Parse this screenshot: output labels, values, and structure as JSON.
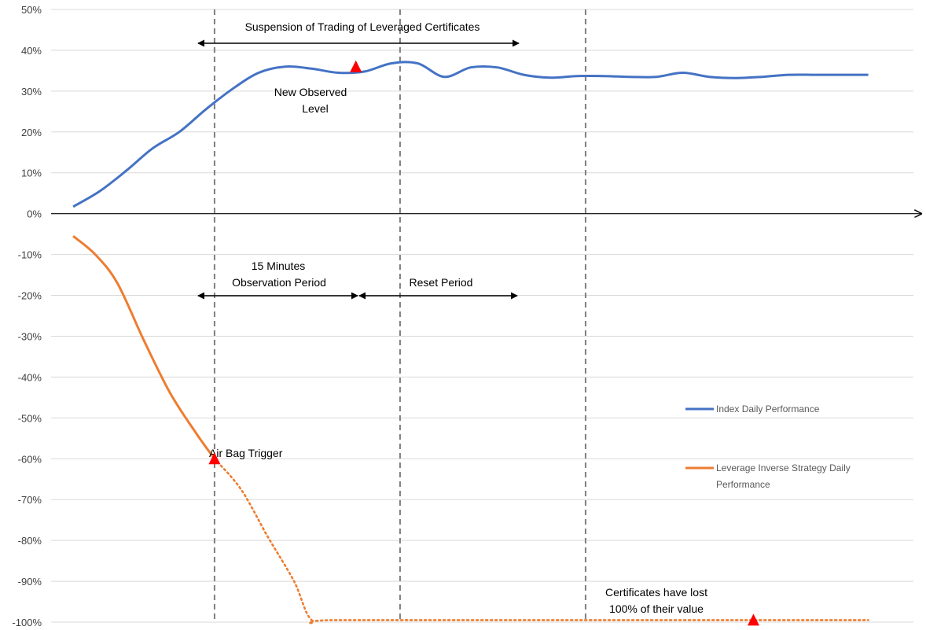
{
  "chart_data": {
    "type": "line",
    "title": "",
    "xlabel": "",
    "ylabel": "",
    "ylim": [
      -100,
      50
    ],
    "yticks": [
      "50%",
      "40%",
      "30%",
      "20%",
      "10%",
      "0%",
      "-10%",
      "-20%",
      "-30%",
      "-40%",
      "-50%",
      "-60%",
      "-70%",
      "-80%",
      "-90%",
      "-100%"
    ],
    "grid": true,
    "legend_position": "right",
    "series": [
      {
        "name": "Index Daily Performance",
        "color": "#4472C4",
        "style": "solid",
        "x": [
          0,
          3,
          6,
          9,
          12,
          15,
          18,
          21,
          24,
          27,
          30,
          33,
          36,
          39,
          42,
          45,
          48,
          51,
          54,
          57,
          60,
          63,
          66,
          69,
          72,
          75,
          78,
          81,
          84,
          87,
          90
        ],
        "values": [
          1.7,
          5.5,
          10.5,
          16,
          20,
          25.5,
          30.5,
          34.5,
          36,
          35.5,
          34.5,
          34.8,
          36.8,
          36.8,
          33.5,
          35.8,
          35.8,
          34,
          33.3,
          33.7,
          33.7,
          33.5,
          33.5,
          34.5,
          33.5,
          33.2,
          33.5,
          34,
          34,
          34,
          34
        ]
      },
      {
        "name": "Leverage Inverse Strategy Daily Performance",
        "color": "#ED7D31",
        "style": "solid",
        "x": [
          0,
          2.5,
          5,
          8,
          11,
          14,
          16
        ],
        "values": [
          -5.5,
          -10,
          -17,
          -31,
          -44,
          -54,
          -60
        ]
      },
      {
        "name": "",
        "color": "#ED7D31",
        "style": "dotted",
        "x": [
          16,
          19,
          22,
          25,
          27,
          30,
          60,
          90
        ],
        "values": [
          -60,
          -67.5,
          -79,
          -90,
          -99.5,
          -99.5,
          -99.5,
          -99.5
        ]
      }
    ],
    "vlines_x": [
      16,
      37,
      58
    ],
    "markers": [
      {
        "x": 32,
        "y": 36,
        "color": "#FF0000"
      },
      {
        "x": 16,
        "y": -60,
        "color": "#FF0000"
      },
      {
        "x": 77,
        "y": -99.5,
        "color": "#FF0000"
      }
    ],
    "annotations": {
      "suspension": "Suspension of Trading of Leveraged Certificates",
      "new_level_1": "New Observed",
      "new_level_2": "Level",
      "observation_1": "15 Minutes",
      "observation_2": "Observation Period",
      "reset": "Reset Period",
      "airbag": "Air Bag Trigger",
      "lost_1": "Certificates have lost",
      "lost_2": "100% of their value"
    },
    "legend": {
      "index": "Index Daily Performance",
      "inverse_1": "Leverage Inverse Strategy Daily",
      "inverse_2": "Performance"
    }
  }
}
